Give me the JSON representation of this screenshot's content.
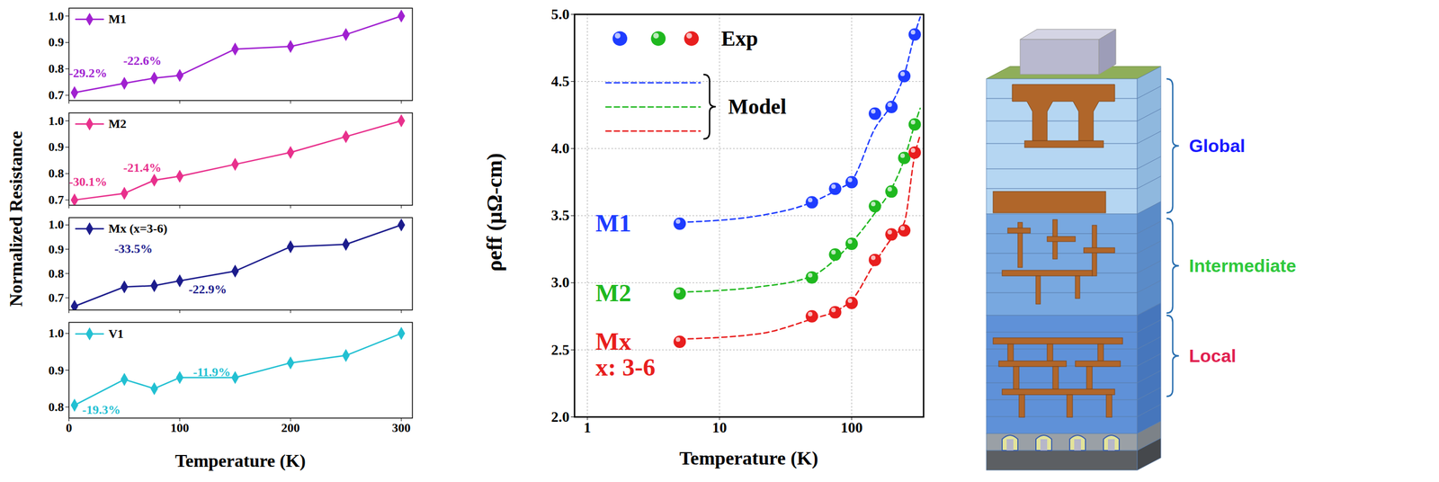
{
  "chart_data": [
    {
      "type": "line",
      "x_label": "Temperature (K)",
      "y_label": "Normalized Resistance",
      "x": [
        5,
        50,
        77,
        100,
        150,
        200,
        250,
        300
      ],
      "xlim": [
        0,
        310
      ],
      "xticks": [
        0,
        100,
        200,
        300
      ],
      "legend": "top-left",
      "panels": [
        {
          "series": [
            {
              "name": "M1",
              "color": "#a020d0",
              "marker": "diamond",
              "values": [
                0.71,
                0.745,
                0.765,
                0.775,
                0.875,
                0.885,
                0.93,
                1.0
              ]
            }
          ],
          "ylim": [
            0.68,
            1.03
          ],
          "yticks": [
            0.7,
            0.8,
            0.9,
            {
              "value": 1,
              "label": "1.0"
            }
          ],
          "tick_labels": "y",
          "annotations": [
            {
              "text": "-29.2%",
              "x": 0,
              "y": 0.783
            },
            {
              "text": "-22.6%",
              "x": 49,
              "y": 0.83
            }
          ]
        },
        {
          "series": [
            {
              "name": "M2",
              "color": "#e8308c",
              "marker": "diamond",
              "values": [
                0.7,
                0.725,
                0.775,
                0.79,
                0.835,
                0.88,
                0.94,
                1.0
              ]
            }
          ],
          "ylim": [
            0.68,
            1.03
          ],
          "yticks": [
            0.7,
            0.8,
            0.9,
            {
              "value": 1,
              "label": "1.0"
            }
          ],
          "tick_labels": "y",
          "annotations": [
            {
              "text": "-30.1%",
              "x": 0,
              "y": 0.768
            },
            {
              "text": "-21.4%",
              "x": 49,
              "y": 0.823
            }
          ]
        },
        {
          "series": [
            {
              "name": "Mx (x=3-6)",
              "color": "#1c1c8c",
              "marker": "diamond",
              "values": [
                0.665,
                0.745,
                0.75,
                0.77,
                0.81,
                0.91,
                0.92,
                1.0
              ]
            }
          ],
          "ylim": [
            0.65,
            1.03
          ],
          "yticks": [
            0.7,
            0.8,
            0.9,
            {
              "value": 1,
              "label": "1.0"
            }
          ],
          "tick_labels": "y",
          "annotations": [
            {
              "text": "-33.5%",
              "x": 41,
              "y": 0.902
            },
            {
              "text": "-22.9%",
              "x": 108,
              "y": 0.735
            }
          ]
        },
        {
          "series": [
            {
              "name": "V1",
              "color": "#22c0d2",
              "marker": "diamond",
              "values": [
                0.805,
                0.875,
                0.85,
                0.88,
                0.88,
                0.92,
                0.94,
                1.0
              ]
            }
          ],
          "ylim": [
            0.77,
            1.03
          ],
          "yticks": [
            0.8,
            0.9,
            {
              "value": 1,
              "label": "1.0"
            }
          ],
          "annotations": [
            {
              "text": "-11.9%",
              "x": 112,
              "y": 0.894
            },
            {
              "text": "-19.3%",
              "x": 12,
              "y": 0.792
            }
          ]
        }
      ]
    },
    {
      "type": "scatter",
      "log": "x",
      "x_label": "Temperature (K)",
      "y_label": "ρeff (μΩ-cm)",
      "xlim": [
        0.8,
        350
      ],
      "xticks": [
        1,
        10,
        100
      ],
      "ylim": [
        2,
        5
      ],
      "yticks": [
        {
          "value": 2,
          "label": "2.0"
        },
        2.5,
        {
          "value": 3,
          "label": "3.0"
        },
        3.5,
        {
          "value": 4,
          "label": "4.0"
        },
        4.5,
        {
          "value": 5,
          "label": "5.0"
        }
      ],
      "grid": true,
      "legend": "top-left",
      "legend_entries": [
        {
          "text": "Exp",
          "type": "scatter"
        },
        {
          "text": "Model",
          "type": "line"
        }
      ],
      "series": [
        {
          "name": "M1",
          "label": "M1",
          "color": "#1e3cff",
          "type": "scatter",
          "marker": "circle",
          "x": [
            5,
            50,
            75,
            100,
            150,
            200,
            250,
            300
          ],
          "values": [
            3.44,
            3.6,
            3.7,
            3.75,
            4.26,
            4.31,
            4.54,
            4.85
          ]
        },
        {
          "name": "M2",
          "label": "M2",
          "color": "#1fb81f",
          "type": "scatter",
          "marker": "circle",
          "x": [
            5,
            50,
            75,
            100,
            150,
            200,
            250,
            300
          ],
          "values": [
            2.92,
            3.04,
            3.21,
            3.29,
            3.57,
            3.68,
            3.93,
            4.18
          ]
        },
        {
          "name": "Mx",
          "label": "Mx\nx: 3-6",
          "color": "#e81e1e",
          "type": "scatter",
          "marker": "circle",
          "x": [
            5,
            50,
            75,
            100,
            150,
            200,
            250,
            300
          ],
          "values": [
            2.56,
            2.75,
            2.78,
            2.85,
            3.17,
            3.36,
            3.39,
            3.97
          ]
        },
        {
          "name": "M1",
          "color": "#1e3cff",
          "type": "line",
          "line_style": "dashed",
          "x": [
            5,
            20,
            50,
            80,
            100,
            150,
            200,
            250,
            300,
            330
          ],
          "values": [
            3.45,
            3.5,
            3.6,
            3.7,
            3.76,
            4.15,
            4.33,
            4.55,
            4.85,
            4.98
          ]
        },
        {
          "name": "M2",
          "color": "#1fb81f",
          "type": "line",
          "line_style": "dashed",
          "x": [
            5,
            20,
            50,
            80,
            100,
            150,
            200,
            250,
            300,
            330
          ],
          "values": [
            2.93,
            2.97,
            3.05,
            3.2,
            3.3,
            3.52,
            3.7,
            3.92,
            4.18,
            4.3
          ]
        },
        {
          "name": "Mx",
          "color": "#e81e1e",
          "type": "line",
          "line_style": "dashed",
          "x": [
            5,
            20,
            50,
            80,
            100,
            150,
            200,
            250,
            300,
            330
          ],
          "values": [
            2.58,
            2.62,
            2.73,
            2.8,
            2.87,
            3.15,
            3.33,
            3.45,
            3.95,
            4.1
          ]
        }
      ]
    }
  ],
  "diagram": {
    "labels": [
      {
        "text": "Global",
        "color": "#1a1aff"
      },
      {
        "text": "Intermediate",
        "color": "#2ec83c"
      },
      {
        "text": "Local",
        "color": "#e0204f"
      }
    ]
  }
}
